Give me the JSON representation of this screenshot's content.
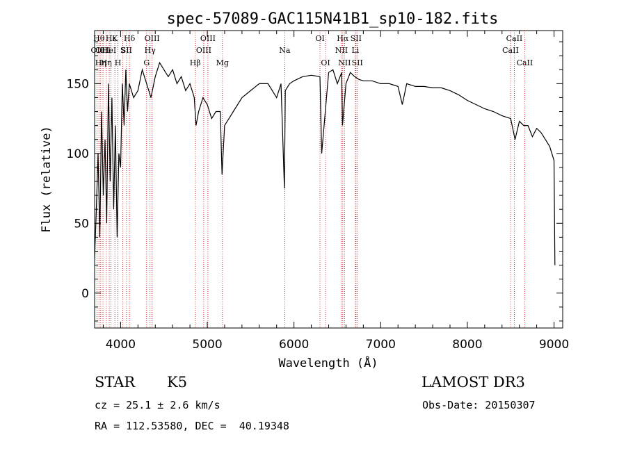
{
  "chart_data": {
    "type": "line",
    "title": "spec-57089-GAC115N41B1_sp10-182.fits",
    "xlabel": "Wavelength (Å)",
    "ylabel": "Flux (relative)",
    "xlim": [
      3700,
      9100
    ],
    "ylim": [
      -25,
      188
    ],
    "xticks": [
      4000,
      5000,
      6000,
      7000,
      8000,
      9000
    ],
    "yticks": [
      0,
      50,
      100,
      150
    ],
    "series": [
      {
        "x": [
          3700,
          3720,
          3740,
          3760,
          3780,
          3800,
          3820,
          3840,
          3860,
          3880,
          3900,
          3920,
          3940,
          3960,
          3980,
          4000,
          4020,
          4040,
          4060,
          4080,
          4100,
          4150,
          4200,
          4250,
          4300,
          4350,
          4400,
          4450,
          4500,
          4550,
          4600,
          4650,
          4700,
          4750,
          4800,
          4850,
          4870,
          4900,
          4950,
          5000,
          5050,
          5100,
          5150,
          5170,
          5200,
          5250,
          5300,
          5400,
          5500,
          5600,
          5700,
          5800,
          5850,
          5890,
          5900,
          5950,
          6000,
          6100,
          6200,
          6300,
          6320,
          6400,
          6450,
          6500,
          6550,
          6560,
          6600,
          6650,
          6700,
          6750,
          6800,
          6900,
          7000,
          7100,
          7200,
          7250,
          7300,
          7400,
          7500,
          7600,
          7700,
          7800,
          7900,
          8000,
          8100,
          8200,
          8300,
          8400,
          8500,
          8550,
          8600,
          8650,
          8700,
          8750,
          8800,
          8850,
          8900,
          8950,
          9000,
          9010
        ],
        "y": [
          25,
          60,
          100,
          40,
          130,
          70,
          110,
          50,
          150,
          80,
          140,
          60,
          120,
          40,
          100,
          90,
          150,
          120,
          160,
          130,
          150,
          140,
          145,
          160,
          150,
          140,
          155,
          165,
          160,
          155,
          160,
          150,
          155,
          145,
          150,
          140,
          120,
          130,
          140,
          135,
          125,
          130,
          130,
          85,
          120,
          125,
          130,
          140,
          145,
          150,
          150,
          140,
          150,
          75,
          145,
          150,
          152,
          155,
          156,
          155,
          100,
          158,
          160,
          150,
          158,
          120,
          150,
          158,
          155,
          153,
          152,
          152,
          150,
          150,
          148,
          135,
          150,
          148,
          148,
          147,
          147,
          145,
          142,
          138,
          135,
          132,
          130,
          127,
          125,
          110,
          123,
          120,
          120,
          112,
          118,
          115,
          110,
          105,
          95,
          20
        ]
      }
    ],
    "lines": [
      {
        "wave": 3727,
        "label": "OII",
        "row": 2
      },
      {
        "wave": 3750,
        "label": "Hθ",
        "row": 1
      },
      {
        "wave": 3771,
        "label": "Hη",
        "row": 3
      },
      {
        "wave": 3797,
        "label": "OIII",
        "row": 2
      },
      {
        "wave": 3835,
        "label": "Hη",
        "row": 3
      },
      {
        "wave": 3869,
        "label": "HeI",
        "row": 2
      },
      {
        "wave": 3889,
        "label": "Hε",
        "row": 1
      },
      {
        "wave": 3934,
        "label": "K",
        "row": 1
      },
      {
        "wave": 3969,
        "label": "H",
        "row": 3
      },
      {
        "wave": 4026,
        "label": "S",
        "row": 2
      },
      {
        "wave": 4068,
        "label": "SII",
        "row": 2
      },
      {
        "wave": 4102,
        "label": "Hδ",
        "row": 1
      },
      {
        "wave": 4300,
        "label": "G",
        "row": 3
      },
      {
        "wave": 4340,
        "label": "Hγ",
        "row": 2
      },
      {
        "wave": 4363,
        "label": "OIII",
        "row": 1
      },
      {
        "wave": 4861,
        "label": "Hβ",
        "row": 3
      },
      {
        "wave": 4959,
        "label": "OIII",
        "row": 2
      },
      {
        "wave": 5007,
        "label": "OIII",
        "row": 1
      },
      {
        "wave": 5175,
        "label": "Mg",
        "row": 3
      },
      {
        "wave": 5893,
        "label": "Na",
        "row": 2
      },
      {
        "wave": 6300,
        "label": "OI",
        "row": 1
      },
      {
        "wave": 6364,
        "label": "OI",
        "row": 3
      },
      {
        "wave": 6548,
        "label": "NII",
        "row": 2
      },
      {
        "wave": 6563,
        "label": "Hα",
        "row": 1
      },
      {
        "wave": 6583,
        "label": "NII",
        "row": 3
      },
      {
        "wave": 6708,
        "label": "Li",
        "row": 2
      },
      {
        "wave": 6716,
        "label": "SII",
        "row": 1
      },
      {
        "wave": 6731,
        "label": "SII",
        "row": 3
      },
      {
        "wave": 8498,
        "label": "CaII",
        "row": 2
      },
      {
        "wave": 8542,
        "label": "CaII",
        "row": 1
      },
      {
        "wave": 8662,
        "label": "CaII",
        "row": 3
      }
    ]
  },
  "info": {
    "class": "STAR",
    "subclass": "K5",
    "survey": "LAMOST DR3",
    "cz": "cz = 25.1 ± 2.6 km/s",
    "obsdate": "Obs-Date: 20150307",
    "radec": "RA = 112.53580, DEC =  40.19348"
  }
}
